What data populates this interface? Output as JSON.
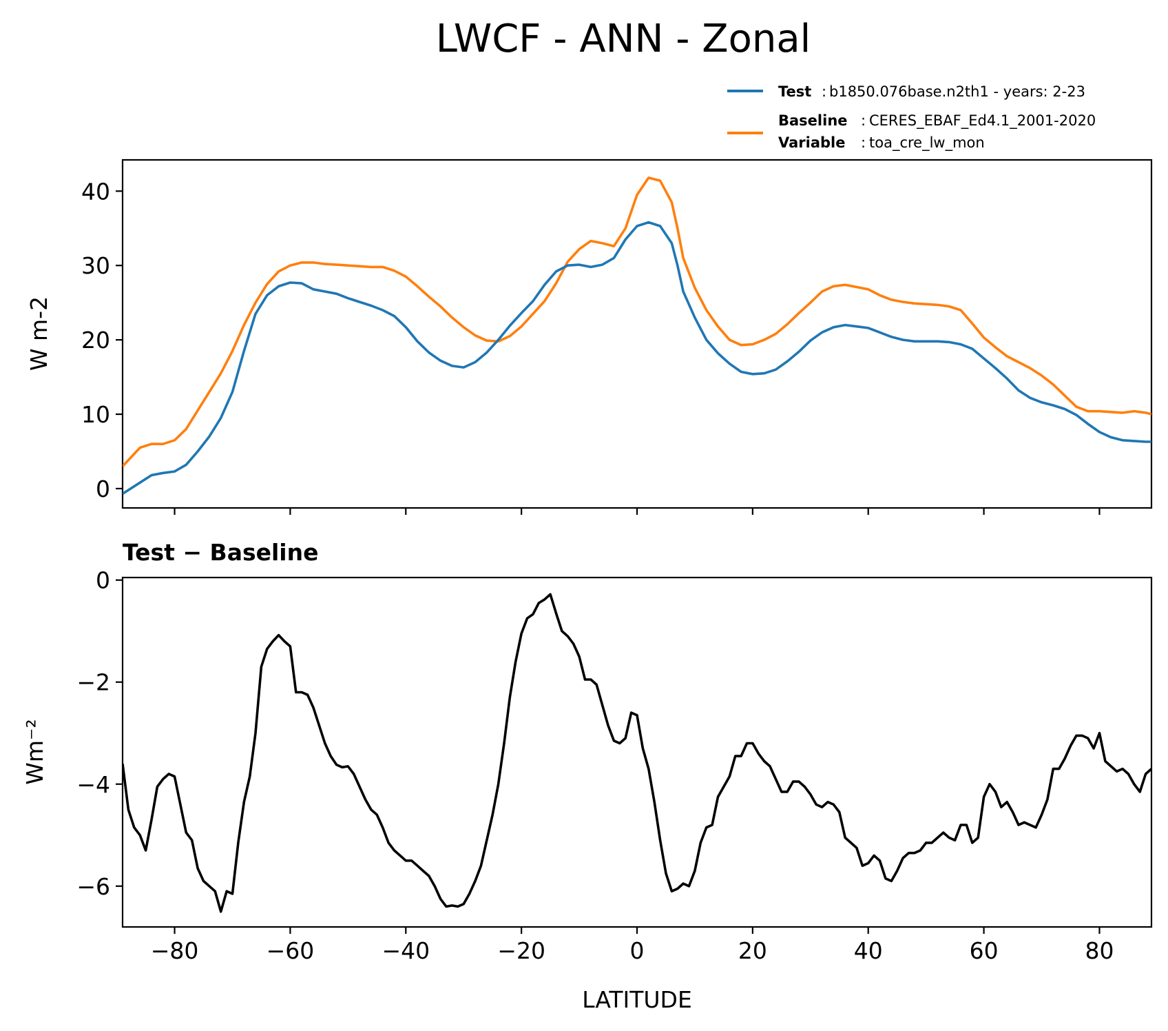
{
  "figure": {
    "title": "LWCF - ANN - Zonal"
  },
  "legend": {
    "test_key": "Test",
    "test_value": "b1850.076base.n2th1 - years: 2-23",
    "baseline_key": "Baseline",
    "baseline_value": "CERES_EBAF_Ed4.1_2001-2020",
    "variable_key": "Variable",
    "variable_value": "toa_cre_lw_mon"
  },
  "colors": {
    "test": "#1f77b4",
    "baseline": "#ff7f0e",
    "diff": "#000000"
  },
  "chart_data": [
    {
      "type": "line",
      "panel": "top",
      "title": "",
      "ylabel": "W m-2",
      "xlim": [
        -89,
        89
      ],
      "ylim": [
        -2.6,
        44.2
      ],
      "yticks": [
        0,
        10,
        20,
        30,
        40
      ],
      "xticks": [
        -80,
        -60,
        -40,
        -20,
        0,
        20,
        40,
        60,
        80
      ],
      "series": [
        {
          "name": "Test",
          "color": "#1f77b4",
          "x": [
            -89,
            -86,
            -84,
            -82,
            -80,
            -78,
            -76,
            -74,
            -72,
            -70,
            -68,
            -66,
            -64,
            -62,
            -60,
            -58,
            -56,
            -54,
            -52,
            -50,
            -48,
            -46,
            -44,
            -42,
            -40,
            -38,
            -36,
            -34,
            -32,
            -30,
            -28,
            -26,
            -24,
            -22,
            -20,
            -18,
            -16,
            -14,
            -12,
            -10,
            -8,
            -6,
            -4,
            -2,
            0,
            2,
            4,
            6,
            7,
            8,
            10,
            12,
            14,
            16,
            18,
            20,
            22,
            24,
            26,
            28,
            30,
            32,
            34,
            36,
            38,
            40,
            42,
            44,
            46,
            48,
            50,
            52,
            54,
            56,
            58,
            60,
            62,
            64,
            66,
            68,
            70,
            72,
            74,
            76,
            78,
            80,
            82,
            84,
            86,
            88,
            89
          ],
          "y": [
            -0.7,
            0.8,
            1.8,
            2.1,
            2.3,
            3.2,
            5.0,
            7.0,
            9.5,
            13.0,
            18.5,
            23.5,
            26.0,
            27.2,
            27.7,
            27.6,
            26.8,
            26.5,
            26.2,
            25.6,
            25.1,
            24.6,
            24.0,
            23.2,
            21.7,
            19.8,
            18.3,
            17.2,
            16.5,
            16.3,
            17.0,
            18.3,
            20.0,
            21.9,
            23.6,
            25.2,
            27.4,
            29.2,
            30.0,
            30.1,
            29.8,
            30.1,
            31.0,
            33.5,
            35.3,
            35.8,
            35.3,
            33.0,
            30.0,
            26.5,
            23.0,
            20.0,
            18.2,
            16.8,
            15.7,
            15.4,
            15.5,
            16.0,
            17.1,
            18.4,
            19.9,
            21.0,
            21.7,
            22.0,
            21.8,
            21.6,
            21.0,
            20.4,
            20.0,
            19.8,
            19.8,
            19.8,
            19.7,
            19.4,
            18.8,
            17.5,
            16.2,
            14.8,
            13.2,
            12.2,
            11.6,
            11.2,
            10.7,
            9.9,
            8.7,
            7.6,
            6.9,
            6.5,
            6.4,
            6.3,
            6.3
          ]
        },
        {
          "name": "Baseline",
          "color": "#ff7f0e",
          "x": [
            -89,
            -86,
            -84,
            -82,
            -80,
            -78,
            -76,
            -74,
            -72,
            -70,
            -68,
            -66,
            -64,
            -62,
            -60,
            -58,
            -56,
            -54,
            -52,
            -50,
            -48,
            -46,
            -44,
            -42,
            -40,
            -38,
            -36,
            -34,
            -32,
            -30,
            -28,
            -26,
            -24,
            -22,
            -20,
            -18,
            -16,
            -14,
            -12,
            -10,
            -8,
            -6,
            -4,
            -2,
            0,
            2,
            4,
            6,
            7,
            8,
            10,
            12,
            14,
            16,
            18,
            20,
            22,
            24,
            26,
            28,
            30,
            32,
            34,
            36,
            38,
            40,
            42,
            44,
            46,
            48,
            50,
            52,
            54,
            56,
            58,
            60,
            62,
            64,
            66,
            68,
            70,
            72,
            74,
            76,
            78,
            80,
            82,
            84,
            86,
            88,
            89
          ],
          "y": [
            3.0,
            5.5,
            6.0,
            6.0,
            6.5,
            8.0,
            10.5,
            13.0,
            15.5,
            18.5,
            22.0,
            25.0,
            27.5,
            29.2,
            30.0,
            30.4,
            30.4,
            30.2,
            30.1,
            30.0,
            29.9,
            29.8,
            29.8,
            29.3,
            28.5,
            27.2,
            25.8,
            24.5,
            23.0,
            21.7,
            20.6,
            19.9,
            19.8,
            20.5,
            21.8,
            23.5,
            25.2,
            27.6,
            30.5,
            32.2,
            33.3,
            33.0,
            32.6,
            35.0,
            39.5,
            41.8,
            41.4,
            38.5,
            35.0,
            31.0,
            27.0,
            24.0,
            21.8,
            20.0,
            19.3,
            19.4,
            20.0,
            20.8,
            22.1,
            23.6,
            25.0,
            26.5,
            27.2,
            27.4,
            27.1,
            26.8,
            26.0,
            25.4,
            25.1,
            24.9,
            24.8,
            24.7,
            24.5,
            24.0,
            22.2,
            20.3,
            19.0,
            17.8,
            17.0,
            16.2,
            15.2,
            14.0,
            12.5,
            11.0,
            10.4,
            10.4,
            10.3,
            10.2,
            10.4,
            10.2,
            10.0
          ]
        }
      ]
    },
    {
      "type": "line",
      "panel": "bottom",
      "title": "Test − Baseline",
      "xlabel": "LATITUDE",
      "ylabel": "Wm⁻²",
      "xlim": [
        -89,
        89
      ],
      "ylim": [
        -6.8,
        0.05
      ],
      "yticks": [
        0,
        -2,
        -4,
        -6
      ],
      "ytick_labels": [
        "0",
        "−2",
        "−4",
        "−6"
      ],
      "xticks": [
        -80,
        -60,
        -40,
        -20,
        0,
        20,
        40,
        60,
        80
      ],
      "xtick_labels": [
        "−80",
        "−60",
        "−40",
        "−20",
        "0",
        "20",
        "40",
        "60",
        "80"
      ],
      "series": [
        {
          "color": "#000000",
          "x": [
            -89,
            -88,
            -87,
            -86,
            -85,
            -84,
            -83,
            -82,
            -81,
            -80,
            -79,
            -78,
            -77,
            -76,
            -75,
            -74,
            -73,
            -72,
            -71,
            -70,
            -69,
            -68,
            -67,
            -66,
            -65,
            -64,
            -63,
            -62,
            -61,
            -60,
            -59,
            -58,
            -57,
            -56,
            -55,
            -54,
            -53,
            -52,
            -51,
            -50,
            -49,
            -48,
            -47,
            -46,
            -45,
            -44,
            -43,
            -42,
            -41,
            -40,
            -39,
            -38,
            -37,
            -36,
            -35,
            -34,
            -33,
            -32,
            -31,
            -30,
            -29,
            -28,
            -27,
            -26,
            -25,
            -24,
            -23,
            -22,
            -21,
            -20,
            -19,
            -18,
            -17,
            -16,
            -15,
            -14,
            -13,
            -12,
            -11,
            -10,
            -9,
            -8,
            -7,
            -6,
            -5,
            -4,
            -3,
            -2,
            -1,
            0,
            1,
            2,
            3,
            4,
            5,
            6,
            7,
            8,
            9,
            10,
            11,
            12,
            13,
            14,
            15,
            16,
            17,
            18,
            19,
            20,
            21,
            22,
            23,
            24,
            25,
            26,
            27,
            28,
            29,
            30,
            31,
            32,
            33,
            34,
            35,
            36,
            37,
            38,
            39,
            40,
            41,
            42,
            43,
            44,
            45,
            46,
            47,
            48,
            49,
            50,
            51,
            52,
            53,
            54,
            55,
            56,
            57,
            58,
            59,
            60,
            61,
            62,
            63,
            64,
            65,
            66,
            67,
            68,
            69,
            70,
            71,
            72,
            73,
            74,
            75,
            76,
            77,
            78,
            79,
            80,
            81,
            82,
            83,
            84,
            85,
            86,
            87,
            88,
            89
          ],
          "y": [
            -3.6,
            -4.5,
            -4.85,
            -5.0,
            -5.3,
            -4.7,
            -4.05,
            -3.9,
            -3.8,
            -3.85,
            -4.4,
            -4.95,
            -5.1,
            -5.65,
            -5.9,
            -6.0,
            -6.1,
            -6.5,
            -6.1,
            -6.15,
            -5.15,
            -4.35,
            -3.85,
            -3.0,
            -1.7,
            -1.35,
            -1.2,
            -1.08,
            -1.2,
            -1.3,
            -2.2,
            -2.2,
            -2.25,
            -2.5,
            -2.85,
            -3.2,
            -3.45,
            -3.62,
            -3.67,
            -3.65,
            -3.8,
            -4.05,
            -4.3,
            -4.5,
            -4.6,
            -4.85,
            -5.15,
            -5.3,
            -5.4,
            -5.5,
            -5.5,
            -5.6,
            -5.7,
            -5.8,
            -6.0,
            -6.25,
            -6.4,
            -6.38,
            -6.4,
            -6.35,
            -6.15,
            -5.9,
            -5.6,
            -5.1,
            -4.6,
            -4.0,
            -3.2,
            -2.3,
            -1.6,
            -1.05,
            -0.75,
            -0.67,
            -0.45,
            -0.38,
            -0.28,
            -0.65,
            -1.0,
            -1.1,
            -1.25,
            -1.5,
            -1.95,
            -1.95,
            -2.05,
            -2.45,
            -2.85,
            -3.15,
            -3.2,
            -3.1,
            -2.6,
            -2.65,
            -3.3,
            -3.7,
            -4.35,
            -5.1,
            -5.75,
            -6.1,
            -6.05,
            -5.95,
            -6.0,
            -5.7,
            -5.15,
            -4.85,
            -4.8,
            -4.25,
            -4.05,
            -3.85,
            -3.45,
            -3.45,
            -3.2,
            -3.2,
            -3.4,
            -3.55,
            -3.65,
            -3.9,
            -4.15,
            -4.15,
            -3.95,
            -3.95,
            -4.05,
            -4.2,
            -4.4,
            -4.45,
            -4.35,
            -4.4,
            -4.55,
            -5.05,
            -5.15,
            -5.25,
            -5.6,
            -5.55,
            -5.4,
            -5.5,
            -5.85,
            -5.9,
            -5.7,
            -5.45,
            -5.35,
            -5.35,
            -5.3,
            -5.15,
            -5.15,
            -5.05,
            -4.95,
            -5.05,
            -5.1,
            -4.8,
            -4.8,
            -5.15,
            -5.05,
            -4.25,
            -4.0,
            -4.15,
            -4.45,
            -4.35,
            -4.55,
            -4.8,
            -4.75,
            -4.8,
            -4.85,
            -4.6,
            -4.3,
            -3.7,
            -3.7,
            -3.5,
            -3.25,
            -3.05,
            -3.05,
            -3.1,
            -3.3,
            -3.0,
            -3.55,
            -3.65,
            -3.75,
            -3.7,
            -3.8,
            -4.0,
            -4.15,
            -3.8,
            -3.7
          ]
        }
      ]
    }
  ]
}
